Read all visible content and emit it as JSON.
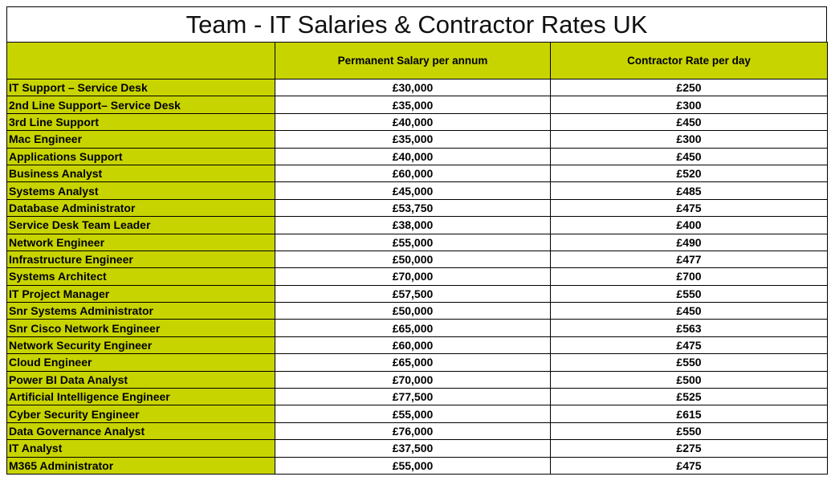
{
  "title": "Team - IT Salaries & Contractor Rates UK",
  "table": {
    "header": [
      "Permanent Salary per annum",
      "Contractor Rate per day"
    ],
    "rows": [
      [
        "IT Support – Service Desk",
        "£30,000",
        "£250"
      ],
      [
        "2nd Line Support– Service Desk",
        "£35,000",
        "£300"
      ],
      [
        "3rd Line Support",
        "£40,000",
        "£450"
      ],
      [
        "Mac Engineer",
        "£35,000",
        "£300"
      ],
      [
        "Applications Support",
        "£40,000",
        "£450"
      ],
      [
        "Business Analyst",
        "£60,000",
        "£520"
      ],
      [
        "Systems Analyst",
        "£45,000",
        "£485"
      ],
      [
        "Database Administrator",
        "£53,750",
        "£475"
      ],
      [
        "Service Desk Team Leader",
        "£38,000",
        "£400"
      ],
      [
        "Network Engineer",
        "£55,000",
        "£490"
      ],
      [
        "Infrastructure Engineer",
        "£50,000",
        "£477"
      ],
      [
        "Systems Architect",
        "£70,000",
        "£700"
      ],
      [
        "IT Project Manager",
        "£57,500",
        "£550"
      ],
      [
        "Snr Systems Administrator",
        "£50,000",
        "£450"
      ],
      [
        "Snr Cisco Network Engineer",
        "£65,000",
        "£563"
      ],
      [
        "Network Security Engineer",
        "£60,000",
        "£475"
      ],
      [
        "Cloud Engineer",
        "£65,000",
        "£550"
      ],
      [
        "Power BI Data Analyst",
        "£70,000",
        "£500"
      ],
      [
        "Artificial Intelligence Engineer",
        "£77,500",
        "£525"
      ],
      [
        "Cyber Security Engineer",
        "£55,000",
        "£615"
      ],
      [
        "Data Governance Analyst",
        "£76,000",
        "£550"
      ],
      [
        "IT Analyst",
        "£37,500",
        "£275"
      ],
      [
        "M365 Administrator",
        "£55,000",
        "£475"
      ]
    ]
  }
}
